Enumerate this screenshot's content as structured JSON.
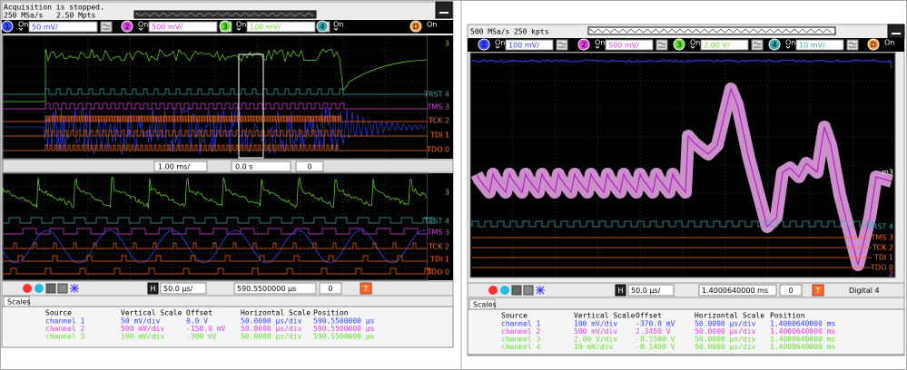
{
  "left": {
    "status": "Acquisition is stopped.",
    "sample_rate": "250 MSa/s",
    "points": "2.50 Mpts",
    "channels": [
      {
        "number": "1",
        "state": "On",
        "scale": "50 mV/"
      },
      {
        "number": "2",
        "state": "On",
        "scale": "500 mV/"
      },
      {
        "number": "3",
        "state": "On",
        "scale": "100 mV/"
      },
      {
        "number": "4",
        "state": "On"
      }
    ],
    "digital": {
      "label": "D",
      "state": "On"
    },
    "upper_labels": [
      "3",
      "TRST 4",
      "TMS 3",
      "TCK 2",
      "TDI 1",
      "TDO 0"
    ],
    "zoom_bar": {
      "time_scale": "1.00 ms/",
      "delay": "0.0 s",
      "index": "0"
    },
    "lower_labels": [
      "3",
      "TRST 4",
      "TMS 3",
      "TCK 2",
      "TDI 1",
      "TDO 0"
    ],
    "bottom_bar": {
      "h": "H",
      "time_scale": "50.0 µs/",
      "position": "590.5500000 µs",
      "index": "0",
      "trigger": "T"
    },
    "scales_tab": "Scales",
    "table": {
      "columns": [
        "Source",
        "Vertical Scale",
        "Offset",
        "Horizontal Scale",
        "Position"
      ],
      "rows": [
        [
          "channel 1",
          "50 mV/div",
          "0.0 V",
          "50.0000 µs/div",
          "590.5500000 µs"
        ],
        [
          "channel 2",
          "500 mV/div",
          "-150.0 mV",
          "50.0000 µs/div",
          "590.5500000 µs"
        ],
        [
          "channel 3",
          "100 mV/div",
          "-300 mV",
          "50.0000 µs/div",
          "590.5500000 µs"
        ]
      ]
    }
  },
  "right": {
    "sample_rate": "500 MSa/s",
    "points": "250 kpts",
    "channels": [
      {
        "number": "1",
        "state": "On",
        "scale": "100 mV/"
      },
      {
        "number": "2",
        "state": "On",
        "scale": "500 mV/"
      },
      {
        "number": "3",
        "state": "On",
        "scale": "2.00 V/"
      },
      {
        "number": "4",
        "state": "On",
        "scale": "10 mV/"
      }
    ],
    "digital": {
      "label": "D",
      "state": "On"
    },
    "labels": [
      "1",
      "m3",
      "TRST 4",
      "TMS 3",
      "TCK 2",
      "TDI 1",
      "TDO 0",
      "2"
    ],
    "bottom_bar": {
      "h": "H",
      "time_scale": "50.0 µs/",
      "position": "1.4000640000 ms",
      "index": "0",
      "trigger": "T",
      "mode": "Digital 4"
    },
    "scales_tab": "Scales",
    "table": {
      "columns": [
        "Source",
        "Vertical Scale",
        "Offset",
        "Horizontal Scale",
        "Position"
      ],
      "rows": [
        [
          "channel 1",
          "100 mV/div",
          "-370.0 mV",
          "50.0000 µs/div",
          "1.4000640000 ms"
        ],
        [
          "channel 2",
          "500 mV/div",
          "2.3450 V",
          "50.0000 µs/div",
          "1.4000640000 ms"
        ],
        [
          "channel 3",
          "2.00 V/div",
          "-8.1500 V",
          "50.0000 µs/div",
          "1.4000640000 ms"
        ],
        [
          "channel 4",
          "10 mV/div",
          "-8.1400 V",
          "50.0000 µs/div",
          "1.4000640000 ms"
        ]
      ]
    }
  }
}
